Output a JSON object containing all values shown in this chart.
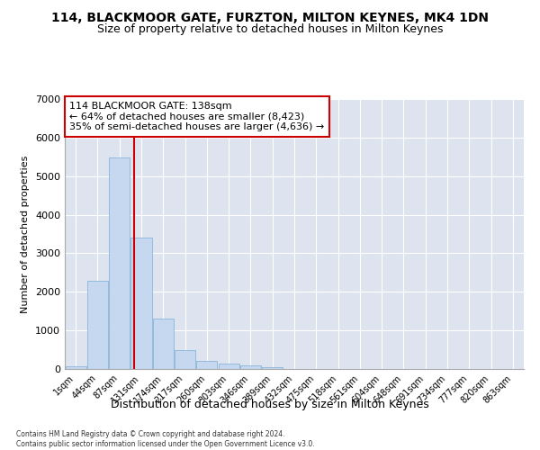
{
  "title": "114, BLACKMOOR GATE, FURZTON, MILTON KEYNES, MK4 1DN",
  "subtitle": "Size of property relative to detached houses in Milton Keynes",
  "xlabel": "Distribution of detached houses by size in Milton Keynes",
  "ylabel": "Number of detached properties",
  "bar_categories": [
    "1sqm",
    "44sqm",
    "87sqm",
    "131sqm",
    "174sqm",
    "217sqm",
    "260sqm",
    "303sqm",
    "346sqm",
    "389sqm",
    "432sqm",
    "475sqm",
    "518sqm",
    "561sqm",
    "604sqm",
    "648sqm",
    "691sqm",
    "734sqm",
    "777sqm",
    "820sqm",
    "863sqm"
  ],
  "bar_values": [
    80,
    2280,
    5480,
    3400,
    1300,
    500,
    200,
    150,
    90,
    50,
    0,
    0,
    0,
    0,
    0,
    0,
    0,
    0,
    0,
    0,
    0
  ],
  "bar_color": "#c5d8f0",
  "bar_edgecolor": "#7aabd4",
  "vline_color": "#cc0000",
  "annotation_text": "114 BLACKMOOR GATE: 138sqm\n← 64% of detached houses are smaller (8,423)\n35% of semi-detached houses are larger (4,636) →",
  "annotation_box_color": "white",
  "annotation_box_edgecolor": "#cc0000",
  "ylim": [
    0,
    7000
  ],
  "yticks": [
    0,
    1000,
    2000,
    3000,
    4000,
    5000,
    6000,
    7000
  ],
  "background_color": "#dde4ef",
  "grid_color": "white",
  "title_fontsize": 10,
  "subtitle_fontsize": 9,
  "xlabel_fontsize": 9,
  "ylabel_fontsize": 8,
  "footer_text": "Contains HM Land Registry data © Crown copyright and database right 2024.\nContains public sector information licensed under the Open Government Licence v3.0."
}
